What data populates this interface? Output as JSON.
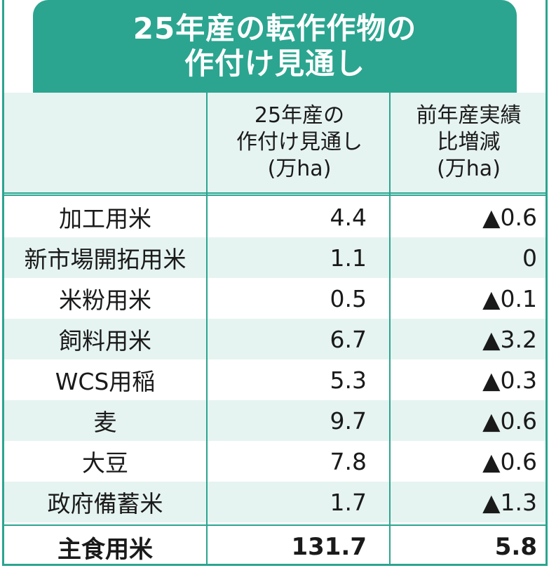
{
  "title": {
    "line1": "25年産の転作作物の",
    "line2": "作付け見通し"
  },
  "headers": {
    "col2": [
      "25年産の",
      "作付け見通し",
      "(万ha)"
    ],
    "col3": [
      "前年産実績",
      "比増減",
      "(万ha)"
    ]
  },
  "rows": [
    {
      "name": "加工用米",
      "value": "4.4",
      "diff": "▲0.6"
    },
    {
      "name": "新市場開拓用米",
      "value": "1.1",
      "diff": "0"
    },
    {
      "name": "米粉用米",
      "value": "0.5",
      "diff": "▲0.1"
    },
    {
      "name": "飼料用米",
      "value": "6.7",
      "diff": "▲3.2"
    },
    {
      "name": "WCS用稲",
      "value": "5.3",
      "diff": "▲0.3"
    },
    {
      "name": "麦",
      "value": "9.7",
      "diff": "▲0.6"
    },
    {
      "name": "大豆",
      "value": "7.8",
      "diff": "▲0.6"
    },
    {
      "name": "政府備蓄米",
      "value": "1.7",
      "diff": "▲1.3"
    }
  ],
  "total": {
    "name": "主食用米",
    "value": "131.7",
    "diff": "5.8"
  },
  "colors": {
    "accent": "#2ba58f",
    "shade": "#e6f4f1"
  }
}
